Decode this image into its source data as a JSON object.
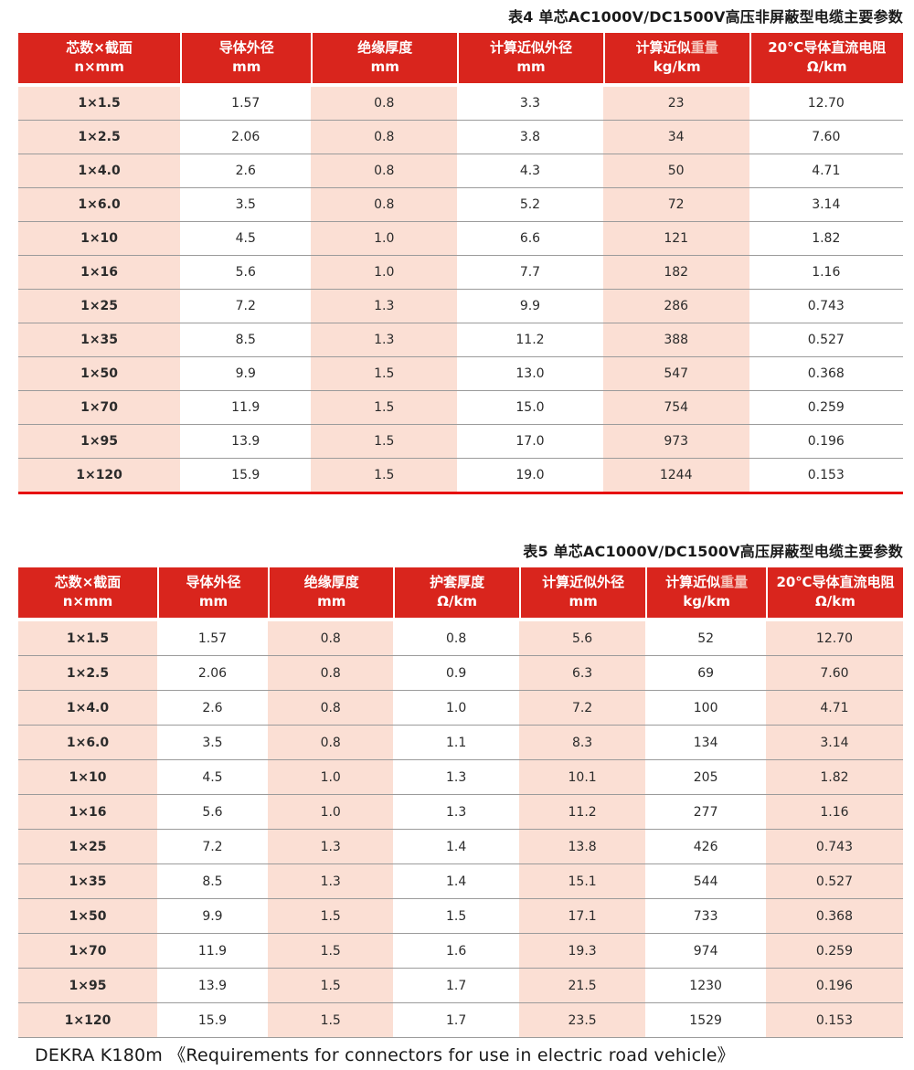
{
  "page": {
    "footer": "DEKRA K180m 《Requirements for connectors for use in electric road vehicle》"
  },
  "colors": {
    "header_red": "#d9251d",
    "row_pink": "#fbdfd4",
    "separator_gray": "#9b9b9b",
    "rule_red": "#e60f0f",
    "header_accent_text": "#f6c3ba"
  },
  "tables": [
    {
      "id": "table4",
      "title": "表4 单芯AC1000V/DC1500V高压非屏蔽型电缆主要参数",
      "col_widths_pct": [
        18.3,
        14.8,
        16.5,
        16.5,
        16.5,
        17.4
      ],
      "headers": [
        {
          "line1": "芯数×截面",
          "line2": "n×mm"
        },
        {
          "line1": "导体外径",
          "line2": "mm"
        },
        {
          "line1": "绝缘厚度",
          "line2": "mm"
        },
        {
          "line1": "计算近似外径",
          "line2": "mm"
        },
        {
          "line1": "计算近似重量",
          "accent": "重量",
          "line2": "kg/km"
        },
        {
          "line1": "20℃导体直流电阻",
          "line2": "Ω/km"
        }
      ],
      "rows": [
        [
          "1×1.5",
          "1.57",
          "0.8",
          "3.3",
          "23",
          "12.70"
        ],
        [
          "1×2.5",
          "2.06",
          "0.8",
          "3.8",
          "34",
          "7.60"
        ],
        [
          "1×4.0",
          "2.6",
          "0.8",
          "4.3",
          "50",
          "4.71"
        ],
        [
          "1×6.0",
          "3.5",
          "0.8",
          "5.2",
          "72",
          "3.14"
        ],
        [
          "1×10",
          "4.5",
          "1.0",
          "6.6",
          "121",
          "1.82"
        ],
        [
          "1×16",
          "5.6",
          "1.0",
          "7.7",
          "182",
          "1.16"
        ],
        [
          "1×25",
          "7.2",
          "1.3",
          "9.9",
          "286",
          "0.743"
        ],
        [
          "1×35",
          "8.5",
          "1.3",
          "11.2",
          "388",
          "0.527"
        ],
        [
          "1×50",
          "9.9",
          "1.5",
          "13.0",
          "547",
          "0.368"
        ],
        [
          "1×70",
          "11.9",
          "1.5",
          "15.0",
          "754",
          "0.259"
        ],
        [
          "1×95",
          "13.9",
          "1.5",
          "17.0",
          "973",
          "0.196"
        ],
        [
          "1×120",
          "15.9",
          "1.5",
          "19.0",
          "1244",
          "0.153"
        ]
      ]
    },
    {
      "id": "table5",
      "title": "表5 单芯AC1000V/DC1500V高压屏蔽型电缆主要参数",
      "col_widths_pct": [
        15.7,
        12.5,
        14.2,
        14.2,
        14.3,
        13.6,
        15.5
      ],
      "headers": [
        {
          "line1": "芯数×截面",
          "line2": "n×mm"
        },
        {
          "line1": "导体外径",
          "line2": "mm"
        },
        {
          "line1": "绝缘厚度",
          "line2": "mm"
        },
        {
          "line1": "护套厚度",
          "line2": "Ω/km"
        },
        {
          "line1": "计算近似外径",
          "line2": "mm"
        },
        {
          "line1": "计算近似重量",
          "accent": "重量",
          "line2": "kg/km"
        },
        {
          "line1": "20℃导体直流电阻",
          "line2": "Ω/km"
        }
      ],
      "rows": [
        [
          "1×1.5",
          "1.57",
          "0.8",
          "0.8",
          "5.6",
          "52",
          "12.70"
        ],
        [
          "1×2.5",
          "2.06",
          "0.8",
          "0.9",
          "6.3",
          "69",
          "7.60"
        ],
        [
          "1×4.0",
          "2.6",
          "0.8",
          "1.0",
          "7.2",
          "100",
          "4.71"
        ],
        [
          "1×6.0",
          "3.5",
          "0.8",
          "1.1",
          "8.3",
          "134",
          "3.14"
        ],
        [
          "1×10",
          "4.5",
          "1.0",
          "1.3",
          "10.1",
          "205",
          "1.82"
        ],
        [
          "1×16",
          "5.6",
          "1.0",
          "1.3",
          "11.2",
          "277",
          "1.16"
        ],
        [
          "1×25",
          "7.2",
          "1.3",
          "1.4",
          "13.8",
          "426",
          "0.743"
        ],
        [
          "1×35",
          "8.5",
          "1.3",
          "1.4",
          "15.1",
          "544",
          "0.527"
        ],
        [
          "1×50",
          "9.9",
          "1.5",
          "1.5",
          "17.1",
          "733",
          "0.368"
        ],
        [
          "1×70",
          "11.9",
          "1.5",
          "1.6",
          "19.3",
          "974",
          "0.259"
        ],
        [
          "1×95",
          "13.9",
          "1.5",
          "1.7",
          "21.5",
          "1230",
          "0.196"
        ],
        [
          "1×120",
          "15.9",
          "1.5",
          "1.7",
          "23.5",
          "1529",
          "0.153"
        ]
      ]
    }
  ]
}
